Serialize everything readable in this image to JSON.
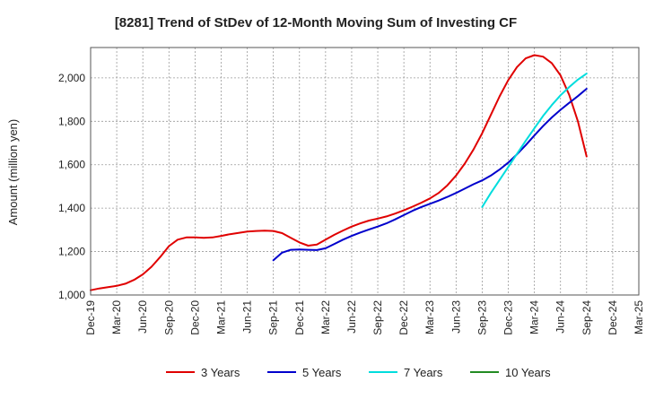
{
  "chart_data": {
    "type": "line",
    "title": "[8281]  Trend of StDev of 12-Month Moving Sum of Investing CF",
    "xlabel": "",
    "ylabel": "Amount (million yen)",
    "ylim": [
      1000,
      2140
    ],
    "y_ticks": [
      1000,
      1200,
      1400,
      1600,
      1800,
      2000
    ],
    "y_tick_labels": [
      "1,000",
      "1,200",
      "1,400",
      "1,600",
      "1,800",
      "2,000"
    ],
    "x_tick_labels": [
      "Dec-19",
      "Mar-20",
      "Jun-20",
      "Sep-20",
      "Dec-20",
      "Mar-21",
      "Jun-21",
      "Sep-21",
      "Dec-21",
      "Mar-22",
      "Jun-22",
      "Sep-22",
      "Dec-22",
      "Mar-23",
      "Jun-23",
      "Sep-23",
      "Dec-23",
      "Mar-24",
      "Jun-24",
      "Sep-24",
      "Dec-24",
      "Mar-25"
    ],
    "x_start": "Dec-19",
    "x_end": "Mar-25",
    "grid": true,
    "legend_position": "bottom",
    "series": [
      {
        "name": "3 Years",
        "color": "#e00000",
        "x": [
          "Dec-19",
          "Jan-20",
          "Feb-20",
          "Mar-20",
          "Apr-20",
          "May-20",
          "Jun-20",
          "Jul-20",
          "Aug-20",
          "Sep-20",
          "Oct-20",
          "Nov-20",
          "Dec-20",
          "Jan-21",
          "Feb-21",
          "Mar-21",
          "Apr-21",
          "May-21",
          "Jun-21",
          "Jul-21",
          "Aug-21",
          "Sep-21",
          "Oct-21",
          "Nov-21",
          "Dec-21",
          "Jan-22",
          "Feb-22",
          "Mar-22",
          "Apr-22",
          "May-22",
          "Jun-22",
          "Jul-22",
          "Aug-22",
          "Sep-22",
          "Oct-22",
          "Nov-22",
          "Dec-22",
          "Jan-23",
          "Feb-23",
          "Mar-23",
          "Apr-23",
          "May-23",
          "Jun-23",
          "Jul-23",
          "Aug-23",
          "Sep-23",
          "Oct-23",
          "Nov-23",
          "Dec-23",
          "Jan-24",
          "Feb-24",
          "Mar-24",
          "Apr-24",
          "May-24",
          "Jun-24",
          "Jul-24",
          "Aug-24",
          "Sep-24"
        ],
        "values": [
          1022,
          1030,
          1036,
          1042,
          1052,
          1070,
          1095,
          1130,
          1175,
          1225,
          1255,
          1265,
          1265,
          1263,
          1265,
          1272,
          1280,
          1286,
          1292,
          1295,
          1296,
          1295,
          1285,
          1263,
          1242,
          1227,
          1232,
          1255,
          1277,
          1297,
          1315,
          1330,
          1343,
          1352,
          1362,
          1375,
          1390,
          1407,
          1425,
          1445,
          1470,
          1505,
          1550,
          1605,
          1670,
          1745,
          1830,
          1915,
          1990,
          2050,
          2090,
          2105,
          2098,
          2068,
          2012,
          1922,
          1800,
          1638
        ]
      },
      {
        "name": "5 Years",
        "color": "#0000cc",
        "x": [
          "Sep-21",
          "Oct-21",
          "Nov-21",
          "Dec-21",
          "Jan-22",
          "Feb-22",
          "Mar-22",
          "Apr-22",
          "May-22",
          "Jun-22",
          "Jul-22",
          "Aug-22",
          "Sep-22",
          "Oct-22",
          "Nov-22",
          "Dec-22",
          "Jan-23",
          "Feb-23",
          "Mar-23",
          "Apr-23",
          "May-23",
          "Jun-23",
          "Jul-23",
          "Aug-23",
          "Sep-23",
          "Oct-23",
          "Nov-23",
          "Dec-23",
          "Jan-24",
          "Feb-24",
          "Mar-24",
          "Apr-24",
          "May-24",
          "Jun-24",
          "Jul-24",
          "Aug-24",
          "Sep-24"
        ],
        "values": [
          1160,
          1195,
          1208,
          1210,
          1208,
          1207,
          1215,
          1235,
          1255,
          1272,
          1288,
          1302,
          1315,
          1330,
          1348,
          1368,
          1388,
          1405,
          1420,
          1435,
          1452,
          1470,
          1490,
          1510,
          1528,
          1550,
          1578,
          1610,
          1648,
          1690,
          1735,
          1778,
          1818,
          1853,
          1885,
          1916,
          1950
        ]
      },
      {
        "name": "7 Years",
        "color": "#00dddd",
        "x": [
          "Sep-23",
          "Oct-23",
          "Nov-23",
          "Dec-23",
          "Jan-24",
          "Feb-24",
          "Mar-24",
          "Apr-24",
          "May-24",
          "Jun-24",
          "Jul-24",
          "Aug-24",
          "Sep-24"
        ],
        "values": [
          1405,
          1470,
          1530,
          1590,
          1650,
          1710,
          1768,
          1825,
          1875,
          1920,
          1958,
          1992,
          2020
        ]
      },
      {
        "name": "10 Years",
        "color": "#228b22",
        "x": [],
        "values": []
      }
    ]
  }
}
